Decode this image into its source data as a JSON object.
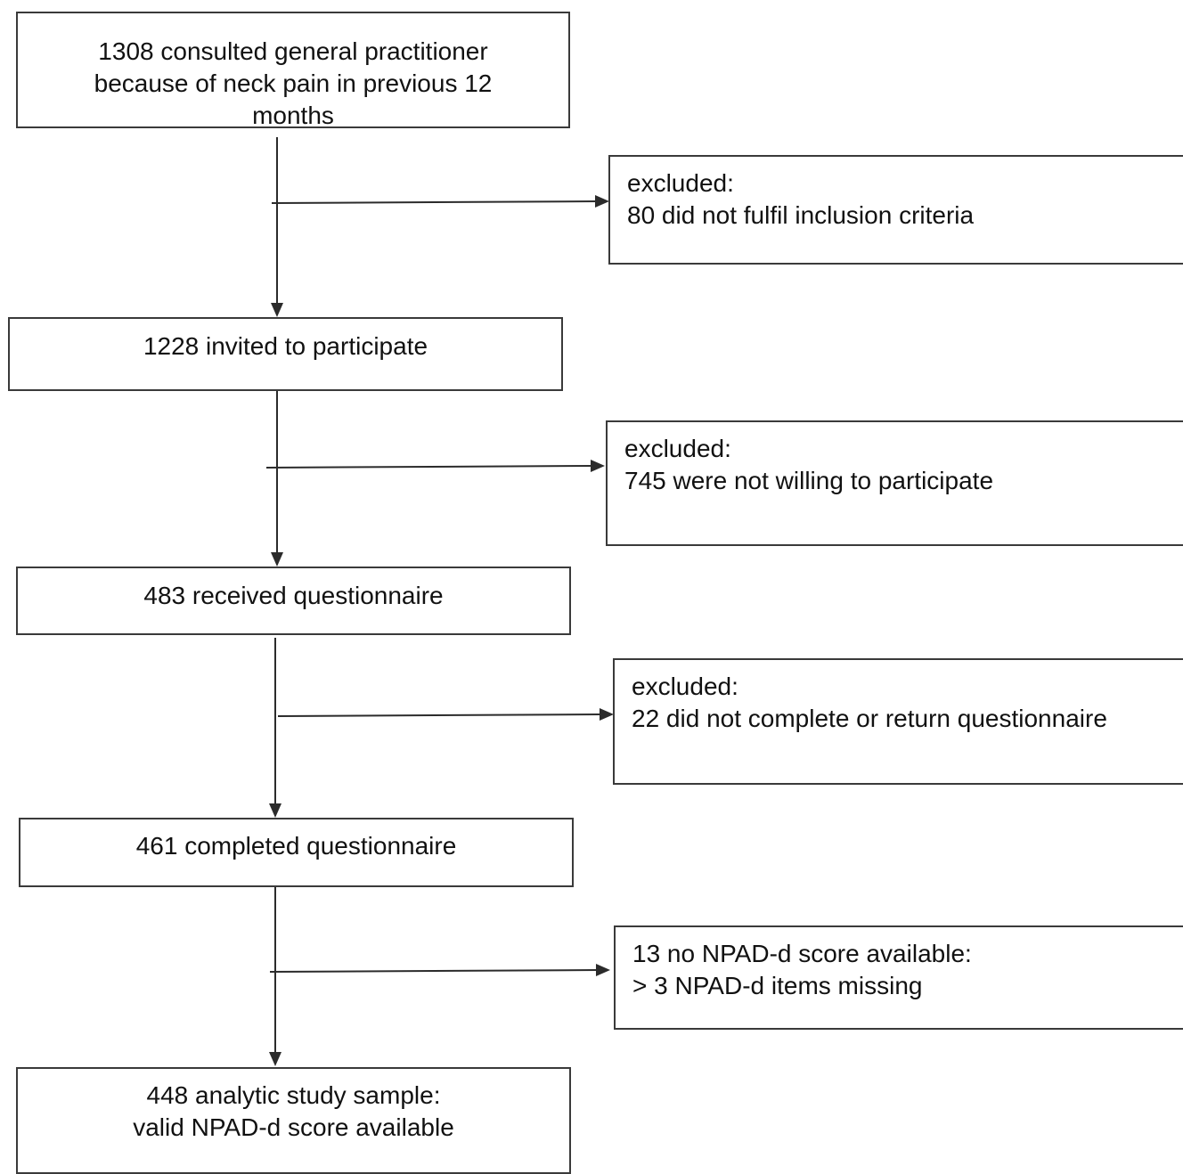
{
  "flowchart": {
    "main_boxes": [
      {
        "lines": [
          "1308 consulted general practitioner",
          "because of neck pain in previous 12",
          "months"
        ]
      },
      {
        "lines": [
          "1228 invited to participate"
        ]
      },
      {
        "lines": [
          "483 received questionnaire"
        ]
      },
      {
        "lines": [
          "461 completed questionnaire"
        ]
      },
      {
        "lines": [
          "448 analytic study sample:",
          "valid NPAD-d score available"
        ]
      }
    ],
    "exclusion_boxes": [
      {
        "lines": [
          "excluded:",
          "80 did not fulfil inclusion criteria"
        ]
      },
      {
        "lines": [
          "excluded:",
          "745 were not willing to participate"
        ]
      },
      {
        "lines": [
          "excluded:",
          "22 did not complete or return questionnaire"
        ]
      },
      {
        "lines": [
          "13 no NPAD-d score available:",
          "> 3 NPAD-d items missing"
        ]
      }
    ]
  },
  "colors": {
    "border": "#3a3a3a",
    "arrow": "#2b2b2b",
    "text": "#111111"
  }
}
